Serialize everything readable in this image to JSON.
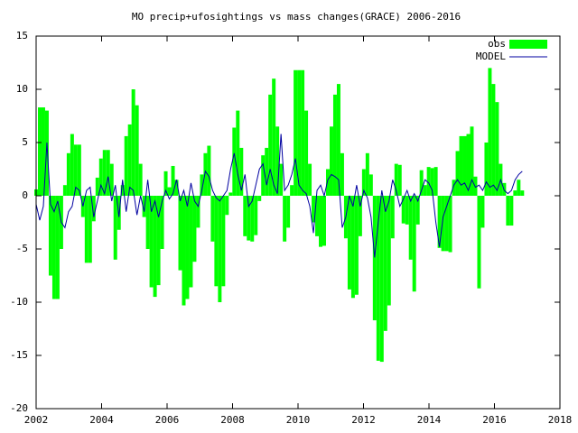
{
  "chart_data": {
    "type": "bar",
    "title": "MO precip+ufosightings vs mass changes(GRACE) 2006-2016",
    "x": [
      2002.0,
      2002.11,
      2002.22,
      2002.33,
      2002.44,
      2002.55,
      2002.66,
      2002.77,
      2002.88,
      2002.99,
      2003.1,
      2003.21,
      2003.32,
      2003.43,
      2003.54,
      2003.65,
      2003.76,
      2003.87,
      2003.98,
      2004.09,
      2004.2,
      2004.31,
      2004.42,
      2004.53,
      2004.64,
      2004.75,
      2004.86,
      2004.97,
      2005.08,
      2005.19,
      2005.3,
      2005.41,
      2005.52,
      2005.63,
      2005.74,
      2005.85,
      2005.96,
      2006.07,
      2006.18,
      2006.29,
      2006.4,
      2006.51,
      2006.62,
      2006.73,
      2006.84,
      2006.95,
      2007.06,
      2007.17,
      2007.28,
      2007.39,
      2007.5,
      2007.61,
      2007.72,
      2007.83,
      2007.94,
      2008.05,
      2008.16,
      2008.27,
      2008.38,
      2008.49,
      2008.6,
      2008.71,
      2008.82,
      2008.93,
      2009.04,
      2009.15,
      2009.26,
      2009.37,
      2009.48,
      2009.59,
      2009.7,
      2009.81,
      2009.92,
      2010.03,
      2010.14,
      2010.25,
      2010.36,
      2010.47,
      2010.58,
      2010.69,
      2010.8,
      2010.91,
      2011.02,
      2011.13,
      2011.24,
      2011.35,
      2011.46,
      2011.57,
      2011.68,
      2011.79,
      2011.9,
      2012.01,
      2012.12,
      2012.23,
      2012.34,
      2012.45,
      2012.56,
      2012.67,
      2012.78,
      2012.89,
      2013.0,
      2013.11,
      2013.22,
      2013.33,
      2013.44,
      2013.55,
      2013.66,
      2013.77,
      2013.88,
      2013.99,
      2014.1,
      2014.21,
      2014.32,
      2014.43,
      2014.54,
      2014.65,
      2014.76,
      2014.87,
      2014.98,
      2015.09,
      2015.2,
      2015.31,
      2015.42,
      2015.53,
      2015.64,
      2015.75,
      2015.86,
      2015.97,
      2016.08,
      2016.19,
      2016.3,
      2016.41,
      2016.52,
      2016.63,
      2016.74,
      2016.85
    ],
    "series": [
      {
        "name": "obs",
        "style": "boxes",
        "color": "#00ff00",
        "values": [
          0.6,
          8.3,
          8.3,
          8,
          -7.5,
          -9.7,
          -9.7,
          -5,
          1,
          4,
          5.8,
          4.8,
          4.8,
          -2,
          -6.3,
          -6.3,
          -2.4,
          1.7,
          3.5,
          4.3,
          4.3,
          3,
          -6,
          -3.2,
          1,
          5.6,
          6.7,
          10,
          8.5,
          3,
          -2,
          -5,
          -8.6,
          -9.5,
          -8.4,
          -5,
          2.3,
          0.8,
          2.8,
          1.5,
          -7,
          -10.3,
          -9.7,
          -8.6,
          -6.2,
          -3,
          2,
          4,
          4.7,
          -4.3,
          -8.5,
          -10,
          -8.5,
          -1.8,
          0.3,
          6.4,
          8,
          4.5,
          -3.8,
          -4.2,
          -4.3,
          -3.7,
          -0.5,
          3.8,
          4.5,
          9.5,
          11,
          6.5,
          3,
          -4.3,
          -3,
          1,
          11.8,
          11.8,
          11.8,
          8,
          3,
          -2.5,
          -3.8,
          -4.8,
          -4.7,
          2.5,
          6.5,
          9.5,
          10.5,
          4,
          -4,
          -8.8,
          -9.6,
          -9.3,
          -3.8,
          2.5,
          4,
          2,
          -11.7,
          -15.5,
          -15.6,
          -12.7,
          -10.3,
          -4,
          3,
          2.9,
          -2.6,
          -2.7,
          -6,
          -9,
          -2.7,
          2.4,
          1,
          2.7,
          2.6,
          2.7,
          -4.9,
          -5.2,
          -5.2,
          -5.3,
          1.5,
          4.2,
          5.6,
          5.6,
          5.8,
          6.5,
          1.8,
          -8.7,
          -3,
          5,
          12,
          10.5,
          8.8,
          3,
          1.2,
          -2.8,
          -2.8,
          0.5,
          1.5,
          0.5
        ]
      },
      {
        "name": "MODEL",
        "style": "lines",
        "color": "#0000a0",
        "values": [
          -0.8,
          -2.3,
          -1,
          5,
          -0.8,
          -1.5,
          -0.5,
          -2.5,
          -3,
          -1.5,
          -1,
          0.8,
          0.5,
          -1,
          0.5,
          0.8,
          -2,
          -0.5,
          1,
          0.2,
          1.8,
          -0.5,
          1,
          -2,
          1.5,
          -1.5,
          0.8,
          0.5,
          -1.8,
          0,
          -1.5,
          1.5,
          -1.5,
          -0.5,
          -2,
          -0.5,
          0.5,
          -0.3,
          0.2,
          1.5,
          -0.5,
          0.5,
          -1,
          1.2,
          -0.5,
          -1,
          0.5,
          2.3,
          1.8,
          0.5,
          -0.2,
          -0.5,
          0,
          0.5,
          2.5,
          4,
          2,
          0.5,
          2,
          -1,
          -0.5,
          1,
          2.5,
          3,
          1,
          2.5,
          1,
          0.2,
          5.8,
          0.5,
          1,
          2,
          3.5,
          1,
          0.5,
          0.2,
          -1,
          -3.5,
          0.5,
          1,
          0,
          1.5,
          2,
          1.8,
          1.5,
          -3,
          -2,
          0,
          -1,
          1,
          -1,
          0.5,
          -0.2,
          -2,
          -5.8,
          -2.5,
          0.5,
          -1.5,
          -0.5,
          1.5,
          0.5,
          -1,
          -0.3,
          0.5,
          -0.5,
          0.2,
          -0.5,
          0.5,
          1.5,
          1.2,
          0.5,
          -2.5,
          -4.8,
          -2,
          -1,
          0,
          1,
          1.5,
          1,
          1.2,
          0.5,
          1.5,
          0.8,
          1,
          0.5,
          1.3,
          0.8,
          1,
          0.5,
          1.5,
          0.5,
          0.2,
          0.5,
          1.5,
          2,
          2.3
        ]
      }
    ],
    "xlim": [
      2002,
      2018
    ],
    "xticks": [
      2002,
      2004,
      2006,
      2008,
      2010,
      2012,
      2014,
      2016,
      2018
    ],
    "ylim": [
      -20,
      15
    ],
    "yticks": [
      -20,
      -15,
      -10,
      -5,
      0,
      5,
      10,
      15
    ],
    "grid": false,
    "legend": "top-right"
  }
}
